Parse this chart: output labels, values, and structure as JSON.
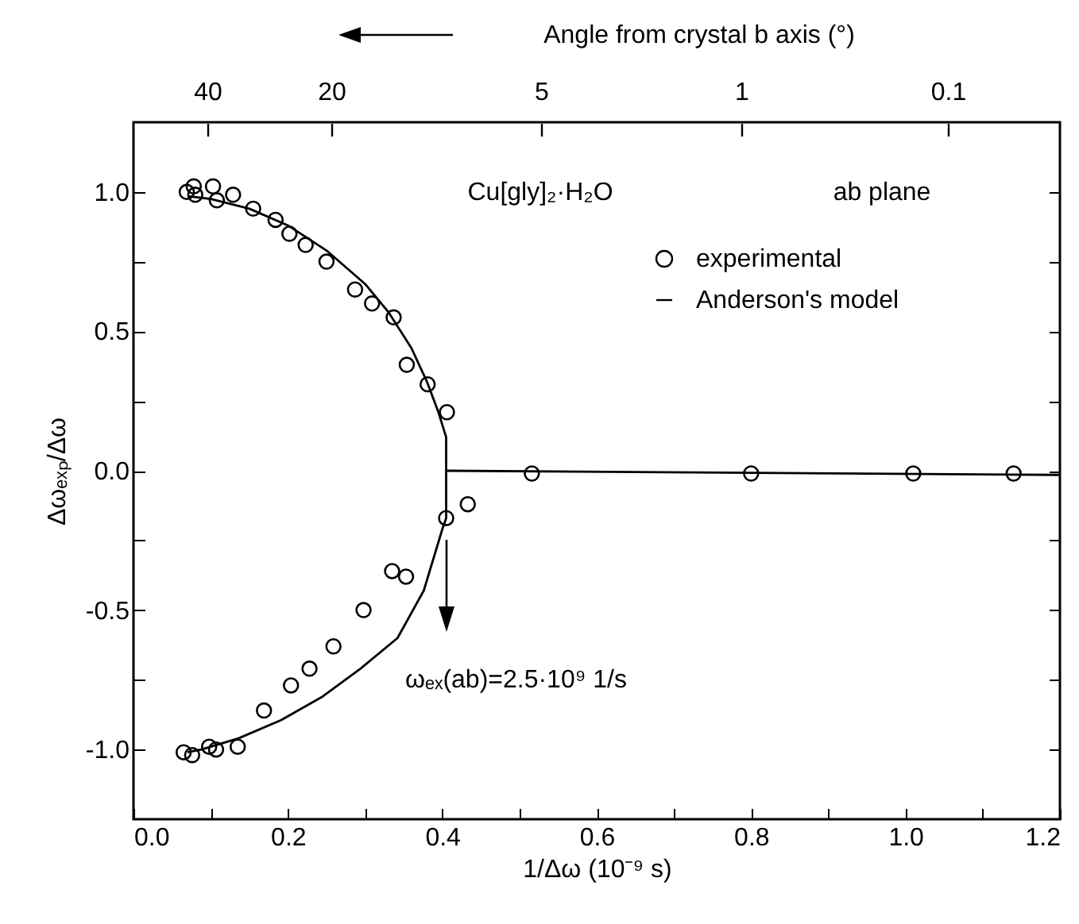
{
  "chart_data": {
    "type": "scatter",
    "xlabel": "1/Δω (10⁻⁹ s)",
    "ylabel": "Δωₑₓₚ/Δω",
    "xlim": [
      0,
      1.2
    ],
    "ylim": [
      -1.25,
      1.25
    ],
    "xticks": [
      {
        "value": 0,
        "label": "0.0"
      },
      {
        "value": 0.1,
        "label": null
      },
      {
        "value": 0.2,
        "label": "0.2"
      },
      {
        "value": 0.3,
        "label": null
      },
      {
        "value": 0.4,
        "label": "0.4"
      },
      {
        "value": 0.5,
        "label": null
      },
      {
        "value": 0.6,
        "label": "0.6"
      },
      {
        "value": 0.7,
        "label": null
      },
      {
        "value": 0.8,
        "label": "0.8"
      },
      {
        "value": 0.9,
        "label": null
      },
      {
        "value": 1.0,
        "label": "1.0"
      },
      {
        "value": 1.1,
        "label": null
      },
      {
        "value": 1.2,
        "label": "1.2"
      }
    ],
    "yticks": [
      {
        "value": -1,
        "label": "-1.0"
      },
      {
        "value": -0.75,
        "label": null
      },
      {
        "value": -0.5,
        "label": "-0.5"
      },
      {
        "value": -0.25,
        "label": null
      },
      {
        "value": 0,
        "label": "0.0"
      },
      {
        "value": 0.25,
        "label": null
      },
      {
        "value": 0.5,
        "label": "0.5"
      },
      {
        "value": 0.75,
        "label": null
      },
      {
        "value": 1,
        "label": "1.0"
      }
    ],
    "annotations": [
      "Angle from crystal b axis (°)",
      "40",
      "20",
      "5",
      "1",
      "0.1",
      "Cu[gly]₂·H₂O",
      "ab plane",
      "ωₑₓ(ab)=2.5·10⁹ 1/s"
    ],
    "series": [
      {
        "name": "experimental",
        "type": "scatter",
        "marker": "circle",
        "color": "#000000",
        "x": [
          0.069,
          0.078,
          0.08,
          0.103,
          0.108,
          0.129,
          0.155,
          0.184,
          0.202,
          0.223,
          0.25,
          0.287,
          0.309,
          0.337,
          0.354,
          0.381,
          0.406,
          0.405,
          0.433,
          0.335,
          0.353,
          0.298,
          0.259,
          0.228,
          0.204,
          0.169,
          0.098,
          0.107,
          0.135,
          0.065,
          0.076,
          0.516,
          0.8,
          1.01,
          1.14
        ],
        "values": [
          1.0,
          1.02,
          0.99,
          1.02,
          0.97,
          0.99,
          0.94,
          0.9,
          0.85,
          0.81,
          0.75,
          0.65,
          0.6,
          0.55,
          0.38,
          0.31,
          0.21,
          -0.17,
          -0.12,
          -0.36,
          -0.38,
          -0.5,
          -0.63,
          -0.71,
          -0.77,
          -0.86,
          -0.99,
          -1.0,
          -0.99,
          -1.01,
          -1.02,
          -0.01,
          -0.01,
          -0.01,
          -0.01
        ]
      },
      {
        "name": "Anderson's model",
        "type": "line",
        "marker": "none",
        "color": "#000000",
        "x": [
          0.07,
          0.1,
          0.15,
          0.2,
          0.25,
          0.3,
          0.33,
          0.36,
          0.38,
          0.395,
          0.405,
          0.405,
          0.4,
          0.376,
          0.342,
          0.294,
          0.245,
          0.191,
          0.136,
          0.088,
          0.07,
          null,
          0.405,
          1.2
        ],
        "values": [
          0.985,
          0.975,
          0.94,
          0.88,
          0.79,
          0.67,
          0.57,
          0.44,
          0.32,
          0.21,
          0.12,
          -0.17,
          -0.21,
          -0.43,
          -0.6,
          -0.71,
          -0.81,
          -0.895,
          -0.96,
          -1.0,
          -1.01,
          null,
          0,
          -0.015
        ]
      }
    ],
    "line_style": "solid",
    "legend": "top right",
    "grid": false
  }
}
